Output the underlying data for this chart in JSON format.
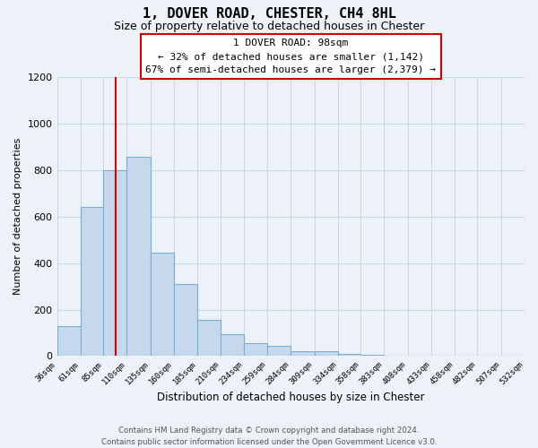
{
  "title": "1, DOVER ROAD, CHESTER, CH4 8HL",
  "subtitle": "Size of property relative to detached houses in Chester",
  "xlabel": "Distribution of detached houses by size in Chester",
  "ylabel": "Number of detached properties",
  "bin_edges": [
    36,
    61,
    85,
    110,
    135,
    160,
    185,
    210,
    234,
    259,
    284,
    309,
    334,
    358,
    383,
    408,
    433,
    458,
    482,
    507,
    532
  ],
  "bar_heights": [
    130,
    640,
    800,
    855,
    445,
    310,
    155,
    95,
    55,
    45,
    20,
    20,
    10,
    5,
    2,
    1,
    0,
    0,
    0,
    1
  ],
  "bar_color": "#c5d8ec",
  "bar_edgecolor": "#7aafd4",
  "vline_x": 98,
  "vline_color": "#cc0000",
  "ylim": [
    0,
    1200
  ],
  "yticks": [
    0,
    200,
    400,
    600,
    800,
    1000,
    1200
  ],
  "annotation_title": "1 DOVER ROAD: 98sqm",
  "annotation_line1": "← 32% of detached houses are smaller (1,142)",
  "annotation_line2": "67% of semi-detached houses are larger (2,379) →",
  "annotation_box_color": "#cc0000",
  "annotation_text_color": "#000000",
  "annotation_bg": "#ffffff",
  "footer_line1": "Contains HM Land Registry data © Crown copyright and database right 2024.",
  "footer_line2": "Contains public sector information licensed under the Open Government Licence v3.0.",
  "grid_color": "#c8d8e8",
  "background_color": "#edf2f8"
}
